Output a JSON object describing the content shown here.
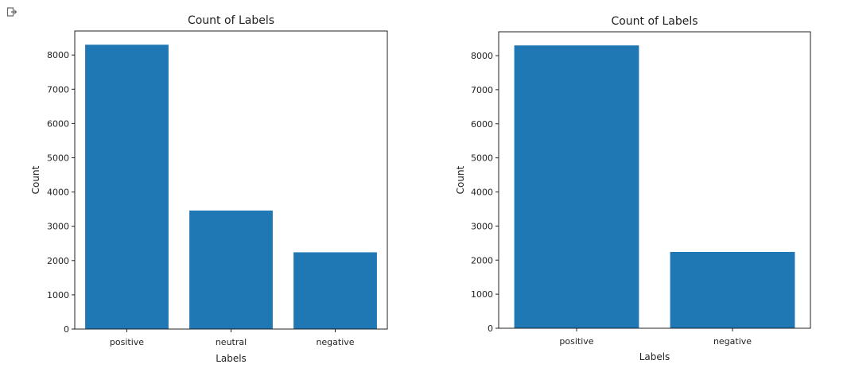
{
  "output_icon": "output-arrow-icon",
  "bar_color": "#1f77b4",
  "chart_data": [
    {
      "type": "bar",
      "title": "Count of Labels",
      "xlabel": "Labels",
      "ylabel": "Count",
      "categories": [
        "positive",
        "neutral",
        "negative"
      ],
      "values": [
        8300,
        3460,
        2240
      ],
      "ylim": [
        0,
        8700
      ],
      "yticks": [
        0,
        1000,
        2000,
        3000,
        4000,
        5000,
        6000,
        7000,
        8000
      ],
      "grid": false,
      "legend": "none"
    },
    {
      "type": "bar",
      "title": "Count of Labels",
      "xlabel": "Labels",
      "ylabel": "Count",
      "categories": [
        "positive",
        "negative"
      ],
      "values": [
        8300,
        2240
      ],
      "ylim": [
        0,
        8700
      ],
      "yticks": [
        0,
        1000,
        2000,
        3000,
        4000,
        5000,
        6000,
        7000,
        8000
      ],
      "grid": false,
      "legend": "none"
    }
  ]
}
